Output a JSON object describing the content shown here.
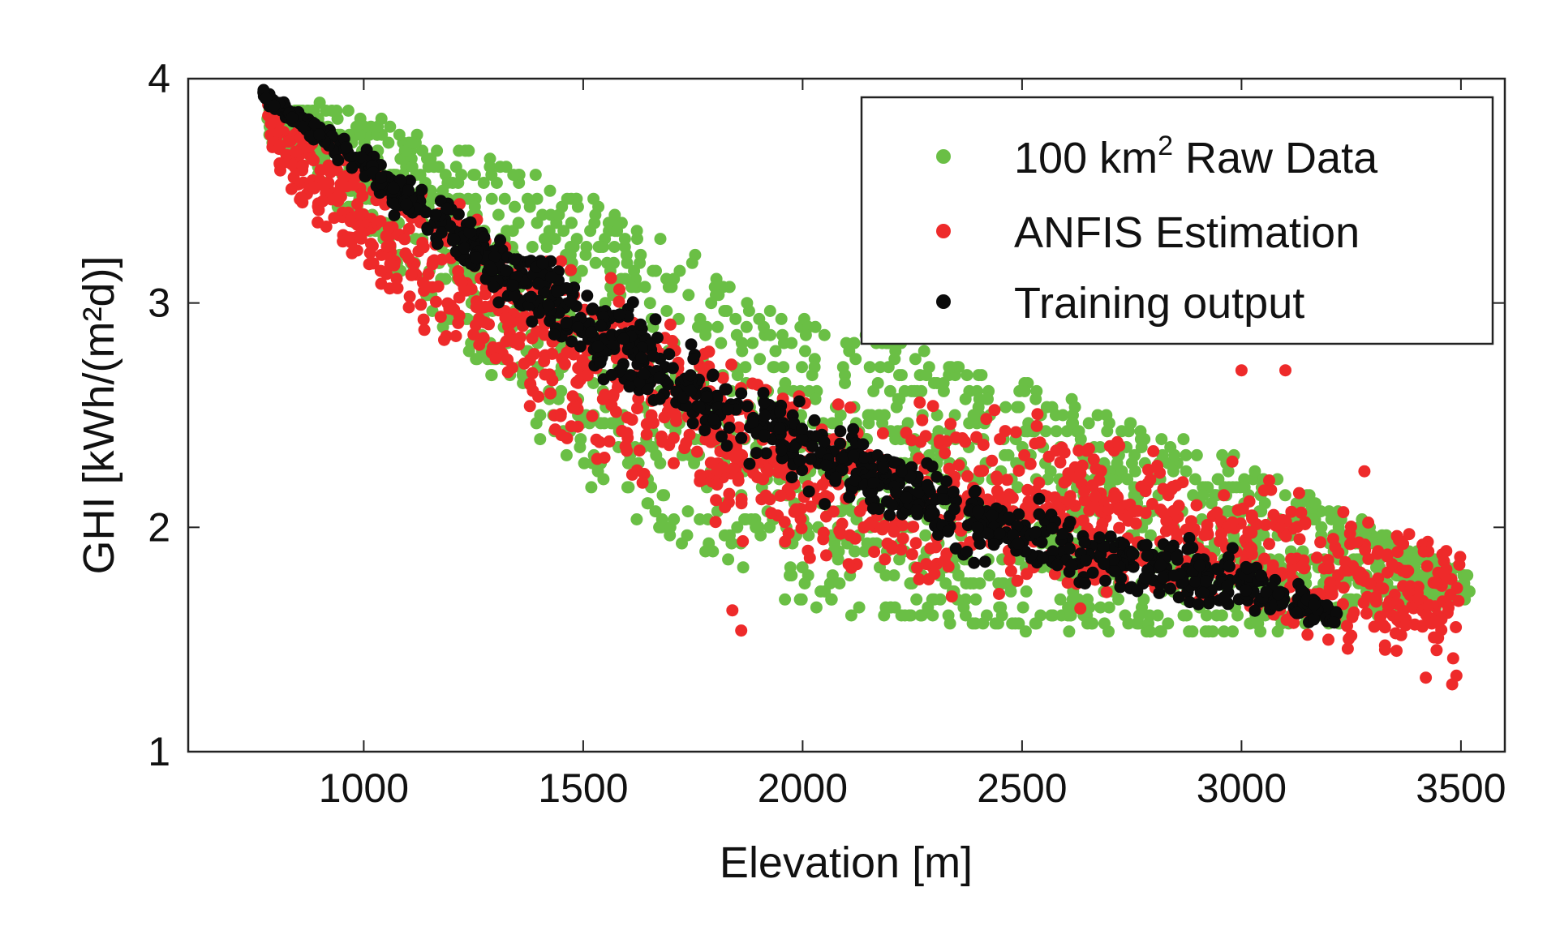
{
  "chart_data": {
    "type": "scatter",
    "title": "",
    "xlabel": "Elevation [m]",
    "ylabel": "GHI  [kWh/(m²d)]",
    "xlim": [
      600,
      3600
    ],
    "ylim": [
      1,
      4
    ],
    "xticks": [
      1000,
      1500,
      2000,
      2500,
      3000,
      3500
    ],
    "yticks": [
      1,
      2,
      3,
      4
    ],
    "legend_position": "top-right",
    "colors": {
      "raw": "#6abf45",
      "anfis": "#ee2a2a",
      "training": "#0b0b0b"
    },
    "series": [
      {
        "name": "100 km² Raw Data",
        "legend_main": "100 km",
        "legend_sup": "2",
        "legend_rest": " Raw Data",
        "color": "#6abf45",
        "band": {
          "x": [
            780,
            1000,
            1500,
            2000,
            2500,
            3000,
            3500
          ],
          "y_min": [
            3.75,
            3.3,
            2.18,
            1.62,
            1.55,
            1.5,
            1.68
          ],
          "y_max": [
            3.92,
            3.85,
            3.5,
            2.95,
            2.65,
            2.3,
            1.8
          ]
        },
        "count": 1800
      },
      {
        "name": "ANFIS Estimation",
        "legend_main": "ANFIS Estimation",
        "color": "#ee2a2a",
        "band": {
          "x": [
            780,
            1000,
            1500,
            2000,
            2500,
            3000,
            3500
          ],
          "y_min": [
            3.6,
            3.05,
            2.25,
            1.75,
            1.65,
            1.55,
            1.3
          ],
          "y_max": [
            3.96,
            3.7,
            3.2,
            2.65,
            2.55,
            2.3,
            1.95
          ]
        },
        "count": 1300,
        "outliers": [
          [
            1840,
            1.63
          ],
          [
            1860,
            1.54
          ],
          [
            3000,
            2.7
          ],
          [
            3100,
            2.7
          ],
          [
            3280,
            2.25
          ],
          [
            3420,
            1.33
          ],
          [
            3480,
            1.3
          ]
        ]
      },
      {
        "name": "Training output",
        "legend_main": "Training output",
        "color": "#0b0b0b",
        "centerline": {
          "x": [
            770,
            1000,
            1500,
            2000,
            2500,
            3000,
            3220
          ],
          "y": [
            3.93,
            3.6,
            2.9,
            2.35,
            1.95,
            1.75,
            1.6
          ]
        },
        "spread": [
          0.03,
          0.08,
          0.18,
          0.16,
          0.15,
          0.12,
          0.04
        ],
        "count": 1000
      }
    ]
  }
}
